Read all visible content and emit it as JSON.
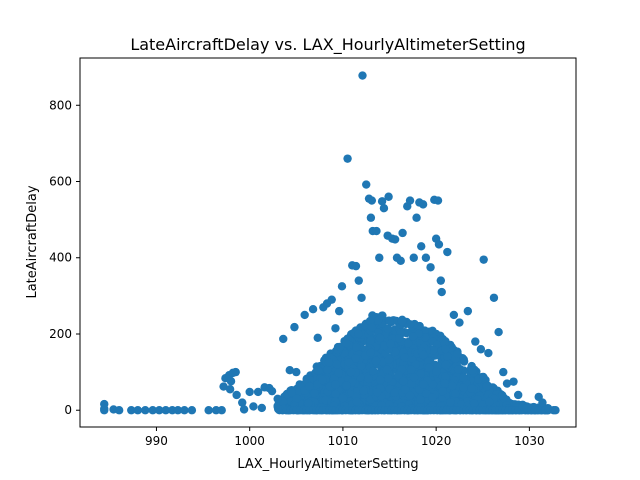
{
  "chart_data": {
    "type": "scatter",
    "title": "LateAircraftDelay vs. LAX_HourlyAltimeterSetting",
    "xlabel": "LAX_HourlyAltimeterSetting",
    "ylabel": "LateAircraftDelay",
    "xlim": [
      981.8,
      1035.0
    ],
    "ylim": [
      -44,
      924
    ],
    "xticks": [
      990,
      1000,
      1010,
      1020,
      1030
    ],
    "yticks": [
      0,
      200,
      400,
      600,
      800
    ],
    "grid": false,
    "marker_color": "#1f77b4",
    "points": [
      [
        984.4,
        16
      ],
      [
        984.4,
        4
      ],
      [
        984.4,
        0
      ],
      [
        985.4,
        2
      ],
      [
        986.0,
        0
      ],
      [
        987.3,
        0
      ],
      [
        988.0,
        0
      ],
      [
        988.8,
        0
      ],
      [
        989.6,
        0
      ],
      [
        990.3,
        0
      ],
      [
        991.0,
        0
      ],
      [
        991.7,
        0
      ],
      [
        992.3,
        0
      ],
      [
        993.0,
        0
      ],
      [
        993.8,
        0
      ],
      [
        995.6,
        0
      ],
      [
        996.4,
        0
      ],
      [
        997.0,
        0
      ],
      [
        997.4,
        84
      ],
      [
        997.8,
        92
      ],
      [
        997.2,
        62
      ],
      [
        998.0,
        76
      ],
      [
        998.5,
        100
      ],
      [
        998.2,
        98
      ],
      [
        997.9,
        55
      ],
      [
        998.6,
        40
      ],
      [
        999.2,
        20
      ],
      [
        999.4,
        2
      ],
      [
        1000.0,
        48
      ],
      [
        1000.4,
        10
      ],
      [
        1000.9,
        48
      ],
      [
        1001.3,
        6
      ],
      [
        1001.6,
        60
      ],
      [
        1002.1,
        58
      ],
      [
        1002.4,
        50
      ],
      [
        1003.0,
        30
      ],
      [
        1003.6,
        187
      ],
      [
        1004.3,
        105
      ],
      [
        1004.8,
        218
      ],
      [
        1005.0,
        100
      ],
      [
        1005.9,
        250
      ],
      [
        1006.8,
        265
      ],
      [
        1007.3,
        190
      ],
      [
        1007.9,
        270
      ],
      [
        1008.3,
        280
      ],
      [
        1008.8,
        290
      ],
      [
        1009.2,
        215
      ],
      [
        1009.6,
        260
      ],
      [
        1009.9,
        325
      ],
      [
        1010.5,
        660
      ],
      [
        1011.0,
        380
      ],
      [
        1011.4,
        378
      ],
      [
        1011.7,
        340
      ],
      [
        1012.0,
        295
      ],
      [
        1012.1,
        878
      ],
      [
        1012.5,
        592
      ],
      [
        1012.8,
        555
      ],
      [
        1013.1,
        550
      ],
      [
        1013.0,
        505
      ],
      [
        1013.2,
        470
      ],
      [
        1013.6,
        470
      ],
      [
        1013.9,
        400
      ],
      [
        1014.2,
        548
      ],
      [
        1014.4,
        530
      ],
      [
        1014.8,
        458
      ],
      [
        1014.9,
        560
      ],
      [
        1015.3,
        450
      ],
      [
        1015.6,
        448
      ],
      [
        1015.8,
        400
      ],
      [
        1016.4,
        465
      ],
      [
        1016.2,
        392
      ],
      [
        1016.9,
        535
      ],
      [
        1017.2,
        550
      ],
      [
        1017.6,
        400
      ],
      [
        1017.9,
        505
      ],
      [
        1018.2,
        545
      ],
      [
        1018.6,
        540
      ],
      [
        1018.4,
        430
      ],
      [
        1018.9,
        400
      ],
      [
        1019.4,
        375
      ],
      [
        1019.8,
        552
      ],
      [
        1020.2,
        550
      ],
      [
        1020.0,
        450
      ],
      [
        1020.3,
        435
      ],
      [
        1020.5,
        340
      ],
      [
        1020.6,
        310
      ],
      [
        1021.2,
        415
      ],
      [
        1021.9,
        250
      ],
      [
        1022.5,
        230
      ],
      [
        1023.4,
        260
      ],
      [
        1024.2,
        180
      ],
      [
        1024.8,
        160
      ],
      [
        1025.1,
        395
      ],
      [
        1025.6,
        150
      ],
      [
        1026.2,
        295
      ],
      [
        1026.7,
        205
      ],
      [
        1027.2,
        100
      ],
      [
        1027.6,
        70
      ],
      [
        1028.3,
        75
      ],
      [
        1028.8,
        40
      ],
      [
        1029.3,
        10
      ],
      [
        1029.7,
        5
      ],
      [
        1030.2,
        0
      ],
      [
        1030.6,
        0
      ],
      [
        1031.0,
        35
      ],
      [
        1031.4,
        20
      ],
      [
        1031.7,
        0
      ],
      [
        1032.1,
        2
      ],
      [
        1032.6,
        0
      ],
      [
        1032.8,
        0
      ]
    ],
    "dense_region": {
      "note": "",
      "x_range": [
        1003.0,
        1032.0
      ],
      "y_peak": 260
    }
  }
}
